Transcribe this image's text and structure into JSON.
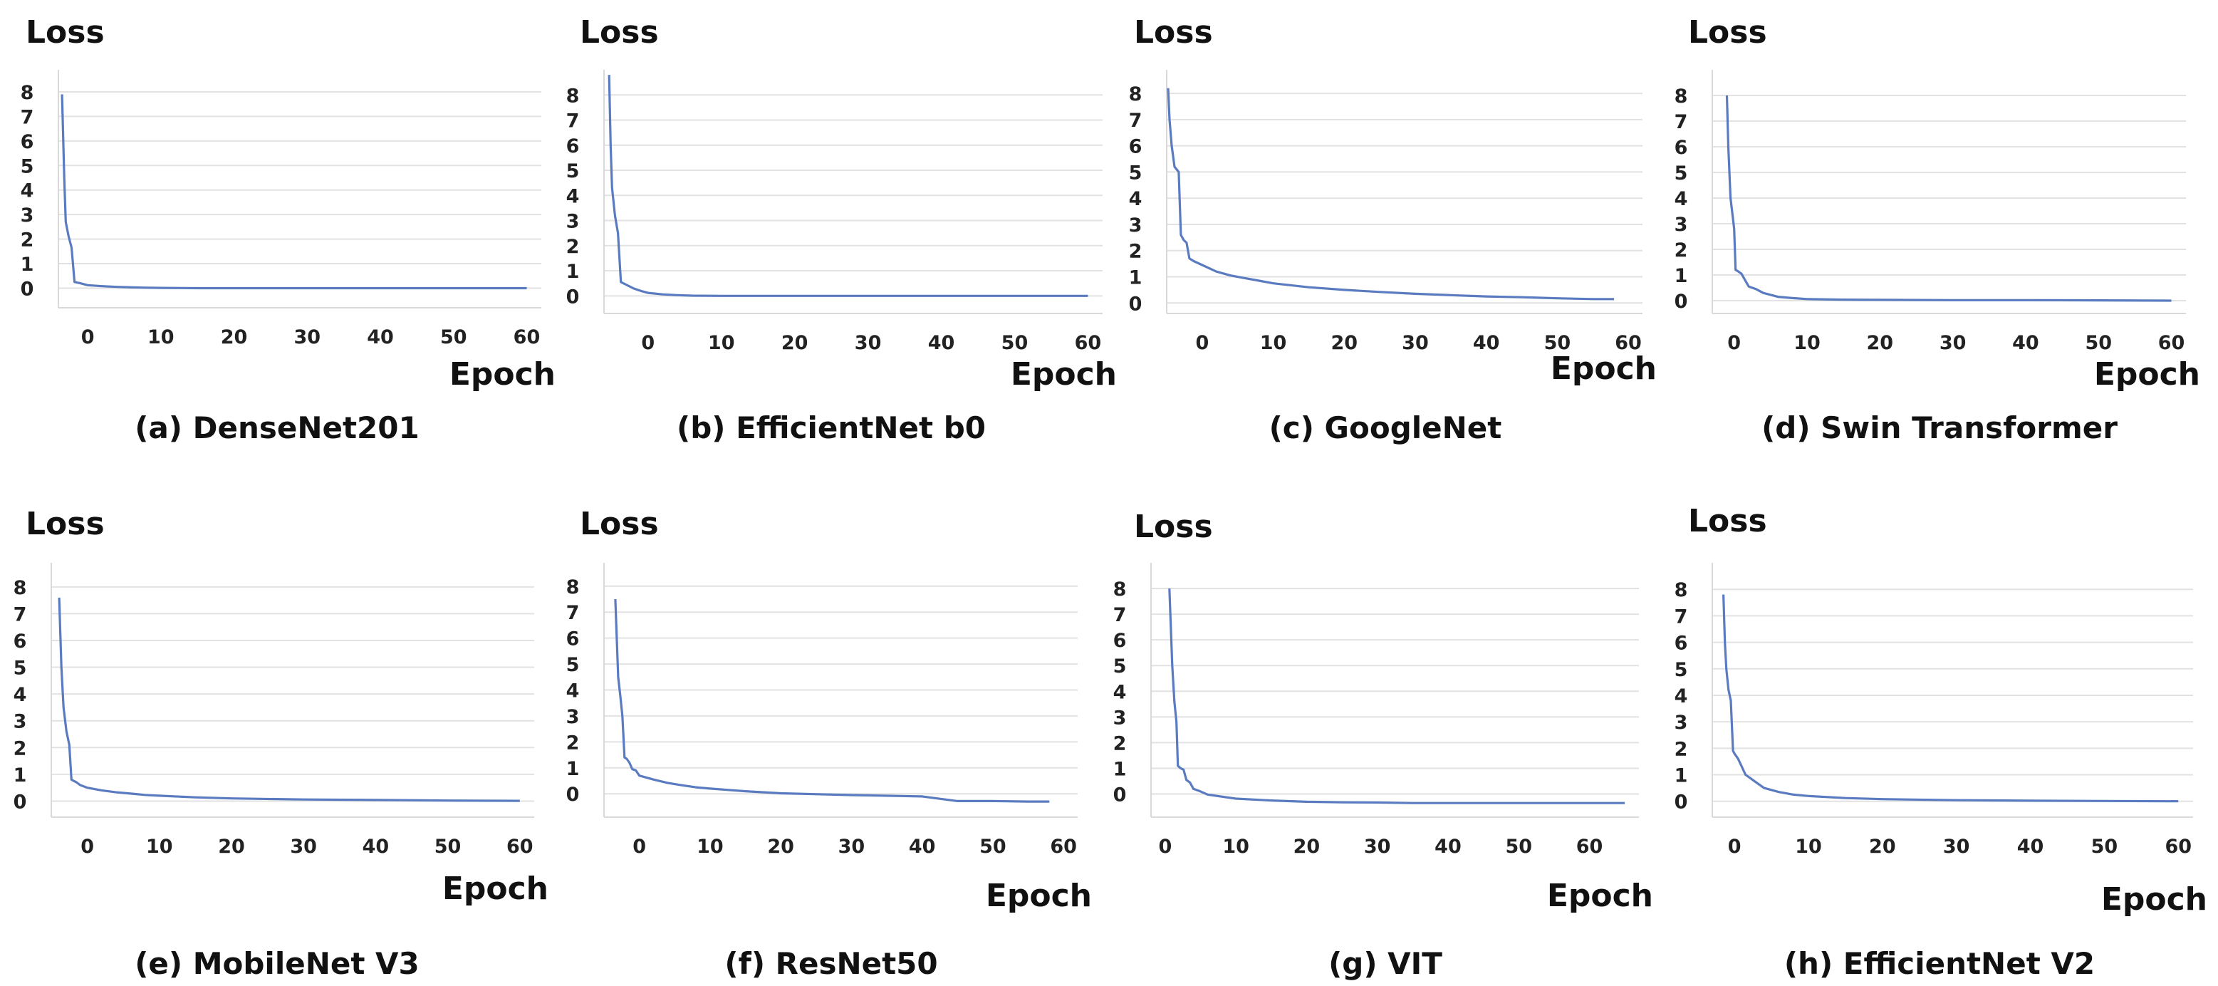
{
  "figure": {
    "line_color": "#5b7bc0",
    "grid_color": "#e2e2e2"
  },
  "chart_data": [
    {
      "type": "line",
      "panel": "a",
      "caption": "(a) DenseNet201",
      "ylabel": "Loss",
      "xlabel": "Epoch",
      "xlim": [
        -4,
        62
      ],
      "ylim": [
        -0.8,
        8.9
      ],
      "xticks": [
        0,
        10,
        20,
        30,
        40,
        50,
        60
      ],
      "yticks": [
        0,
        1,
        2,
        3,
        4,
        5,
        6,
        7,
        8
      ],
      "series": [
        {
          "name": "Loss",
          "x": [
            -3.5,
            -3.2,
            -3.0,
            -2.6,
            -2.2,
            -1.8,
            -1,
            0,
            2,
            4,
            6,
            8,
            10,
            15,
            20,
            30,
            40,
            50,
            60
          ],
          "y": [
            7.9,
            4.5,
            2.7,
            2.1,
            1.65,
            0.25,
            0.2,
            0.12,
            0.08,
            0.05,
            0.03,
            0.02,
            0.01,
            0,
            0,
            0,
            0,
            0,
            0
          ]
        }
      ]
    },
    {
      "type": "line",
      "panel": "b",
      "caption": "(b) EfficientNet b0",
      "ylabel": "Loss",
      "xlabel": "Epoch",
      "xlim": [
        -6,
        62
      ],
      "ylim": [
        -0.7,
        9.0
      ],
      "xticks": [
        0,
        10,
        20,
        30,
        40,
        50,
        60
      ],
      "yticks": [
        0,
        1,
        2,
        3,
        4,
        5,
        6,
        7,
        8
      ],
      "series": [
        {
          "name": "Loss",
          "x": [
            -5.3,
            -5.1,
            -4.9,
            -4.5,
            -4.1,
            -3.7,
            -3,
            -2,
            -1,
            0,
            2,
            4,
            6,
            10,
            20,
            30,
            40,
            50,
            60
          ],
          "y": [
            8.8,
            6.0,
            4.3,
            3.2,
            2.5,
            0.55,
            0.45,
            0.3,
            0.2,
            0.12,
            0.06,
            0.03,
            0.01,
            0,
            0,
            0,
            0,
            0,
            0
          ]
        }
      ]
    },
    {
      "type": "line",
      "panel": "c",
      "caption": "(c) GoogleNet",
      "ylabel": "Loss",
      "xlabel": "Epoch",
      "xlim": [
        -5,
        62
      ],
      "ylim": [
        -0.4,
        8.9
      ],
      "xticks": [
        0,
        10,
        20,
        30,
        40,
        50,
        60
      ],
      "yticks": [
        0,
        1,
        2,
        3,
        4,
        5,
        6,
        7,
        8
      ],
      "series": [
        {
          "name": "Loss",
          "x": [
            -4.8,
            -4.6,
            -4.3,
            -3.9,
            -3.3,
            -3.0,
            -2.6,
            -2.2,
            -1.8,
            -1.2,
            0,
            2,
            4,
            6,
            8,
            10,
            15,
            20,
            25,
            30,
            35,
            40,
            45,
            50,
            55,
            58
          ],
          "y": [
            8.2,
            7.0,
            6.0,
            5.2,
            5.0,
            2.6,
            2.4,
            2.3,
            1.7,
            1.6,
            1.45,
            1.2,
            1.05,
            0.95,
            0.85,
            0.75,
            0.6,
            0.5,
            0.42,
            0.35,
            0.3,
            0.25,
            0.22,
            0.18,
            0.15,
            0.15
          ]
        }
      ]
    },
    {
      "type": "line",
      "panel": "d",
      "caption": "(d) Swin Transformer",
      "ylabel": "Loss",
      "xlabel": "Epoch",
      "xlim": [
        -3,
        62
      ],
      "ylim": [
        -0.5,
        9.0
      ],
      "xticks": [
        0,
        10,
        20,
        30,
        40,
        50,
        60
      ],
      "yticks": [
        0,
        1,
        2,
        3,
        4,
        5,
        6,
        7,
        8
      ],
      "series": [
        {
          "name": "Loss",
          "x": [
            -1.0,
            -0.8,
            -0.5,
            -0.2,
            0,
            0.2,
            0.5,
            1,
            1.5,
            2,
            3,
            4,
            6,
            8,
            10,
            15,
            20,
            30,
            40,
            50,
            60
          ],
          "y": [
            8.0,
            6.0,
            4.0,
            3.3,
            2.8,
            1.2,
            1.15,
            1.05,
            0.8,
            0.55,
            0.45,
            0.3,
            0.15,
            0.1,
            0.06,
            0.04,
            0.03,
            0.02,
            0.02,
            0.01,
            0
          ]
        }
      ]
    },
    {
      "type": "line",
      "panel": "e",
      "caption": "(e) MobileNet V3",
      "ylabel": "Loss",
      "xlabel": "Epoch",
      "xlim": [
        -5,
        62
      ],
      "ylim": [
        -0.6,
        8.9
      ],
      "xticks": [
        0,
        10,
        20,
        30,
        40,
        50,
        60
      ],
      "yticks": [
        0,
        1,
        2,
        3,
        4,
        5,
        6,
        7,
        8
      ],
      "series": [
        {
          "name": "Loss",
          "x": [
            -3.9,
            -3.6,
            -3.3,
            -2.9,
            -2.5,
            -2.2,
            -1.5,
            -1,
            0,
            2,
            4,
            6,
            8,
            10,
            15,
            20,
            30,
            40,
            50,
            60
          ],
          "y": [
            7.6,
            5.0,
            3.5,
            2.6,
            2.1,
            0.8,
            0.7,
            0.6,
            0.5,
            0.4,
            0.33,
            0.28,
            0.23,
            0.2,
            0.14,
            0.1,
            0.06,
            0.04,
            0.02,
            0.01
          ]
        }
      ]
    },
    {
      "type": "line",
      "panel": "f",
      "caption": "(f) ResNet50",
      "ylabel": "Loss",
      "xlabel": "Epoch",
      "xlim": [
        -5,
        62
      ],
      "ylim": [
        -0.9,
        8.9
      ],
      "xticks": [
        0,
        10,
        20,
        30,
        40,
        50,
        60
      ],
      "yticks": [
        0,
        1,
        2,
        3,
        4,
        5,
        6,
        7,
        8
      ],
      "series": [
        {
          "name": "Loss",
          "x": [
            -3.4,
            -3.2,
            -3.0,
            -2.7,
            -2.4,
            -2.1,
            -1.8,
            -1.4,
            -1,
            -0.5,
            0,
            2,
            4,
            6,
            8,
            10,
            15,
            20,
            30,
            40,
            45,
            50,
            55,
            58
          ],
          "y": [
            7.5,
            6.0,
            4.5,
            3.8,
            3.0,
            1.4,
            1.35,
            1.2,
            0.95,
            0.9,
            0.7,
            0.55,
            0.42,
            0.33,
            0.25,
            0.2,
            0.1,
            0.02,
            -0.05,
            -0.1,
            -0.28,
            -0.28,
            -0.3,
            -0.3
          ]
        }
      ]
    },
    {
      "type": "line",
      "panel": "g",
      "caption": "(g) VIT",
      "ylabel": "Loss",
      "xlabel": "Epoch",
      "xlim": [
        -2,
        67
      ],
      "ylim": [
        -0.9,
        9.0
      ],
      "xticks": [
        0,
        10,
        20,
        30,
        40,
        50,
        60
      ],
      "yticks": [
        0,
        1,
        2,
        3,
        4,
        5,
        6,
        7,
        8
      ],
      "series": [
        {
          "name": "Loss",
          "x": [
            0.6,
            0.8,
            1.0,
            1.3,
            1.6,
            1.8,
            2.2,
            2.6,
            3.0,
            3.5,
            4.0,
            5,
            6,
            8,
            10,
            15,
            20,
            25,
            30,
            35,
            40,
            50,
            60,
            65
          ],
          "y": [
            8.0,
            6.5,
            5.0,
            3.6,
            2.8,
            1.1,
            1.0,
            0.95,
            0.55,
            0.45,
            0.2,
            0.1,
            -0.02,
            -0.1,
            -0.18,
            -0.25,
            -0.3,
            -0.32,
            -0.33,
            -0.35,
            -0.35,
            -0.35,
            -0.35,
            -0.35
          ]
        }
      ]
    },
    {
      "type": "line",
      "panel": "h",
      "caption": "(h) EfficientNet V2",
      "ylabel": "Loss",
      "xlabel": "Epoch",
      "xlim": [
        -3,
        62
      ],
      "ylim": [
        -0.6,
        9.0
      ],
      "xticks": [
        0,
        10,
        20,
        30,
        40,
        50,
        60
      ],
      "yticks": [
        0,
        1,
        2,
        3,
        4,
        5,
        6,
        7,
        8
      ],
      "series": [
        {
          "name": "Loss",
          "x": [
            -1.5,
            -1.3,
            -1.1,
            -0.8,
            -0.5,
            -0.2,
            0,
            0.5,
            1,
            1.5,
            2,
            3,
            4,
            6,
            8,
            10,
            15,
            20,
            30,
            40,
            50,
            60
          ],
          "y": [
            7.8,
            6.0,
            5.0,
            4.2,
            3.8,
            1.9,
            1.8,
            1.6,
            1.3,
            1.0,
            0.9,
            0.7,
            0.5,
            0.35,
            0.25,
            0.2,
            0.12,
            0.08,
            0.04,
            0.02,
            0.01,
            0
          ]
        }
      ]
    }
  ]
}
